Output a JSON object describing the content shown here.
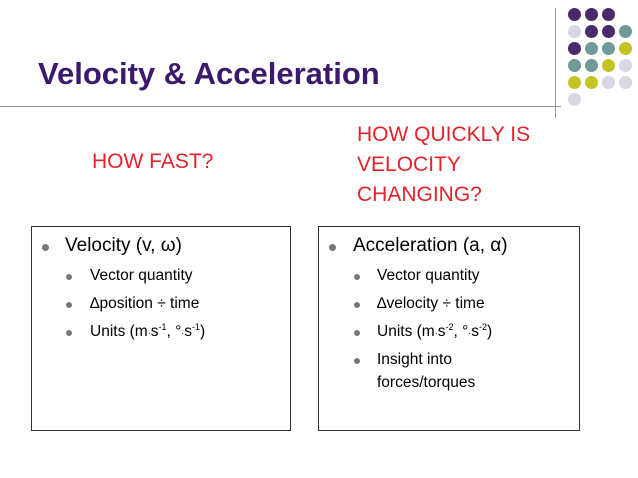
{
  "slide": {
    "title": "Velocity & Acceleration",
    "question_left": "HOW FAST?",
    "question_right_lines": [
      "HOW QUICKLY IS",
      "VELOCITY",
      "CHANGING?"
    ]
  },
  "left_box": {
    "heading": "Velocity (v, ω)",
    "items": [
      "Vector quantity",
      "∆position ÷ time"
    ],
    "units_prefix": "Units (m",
    "units_dot": "·",
    "units_s": "s",
    "units_exp": "-1",
    "units_mid": ", °",
    "units_s2": "s",
    "units_exp2": "-1",
    "units_close": ")"
  },
  "right_box": {
    "heading": "Acceleration (a, α)",
    "items": [
      "Vector quantity",
      "∆velocity ÷ time"
    ],
    "units_prefix": "Units (m",
    "units_dot": "·",
    "units_s": "s",
    "units_exp": "-2",
    "units_mid": ", °",
    "units_s2": "s",
    "units_exp2": "-2",
    "units_close": ")",
    "insight_lines": [
      "Insight into",
      "forces/torques"
    ]
  },
  "colors": {
    "title": "#3b1a6e",
    "question": "#e3232b",
    "dot_purple": "#4b2a6b",
    "dot_teal": "#6f9a98",
    "dot_olive": "#c3c424",
    "dot_lavender": "#d7d7e6"
  }
}
